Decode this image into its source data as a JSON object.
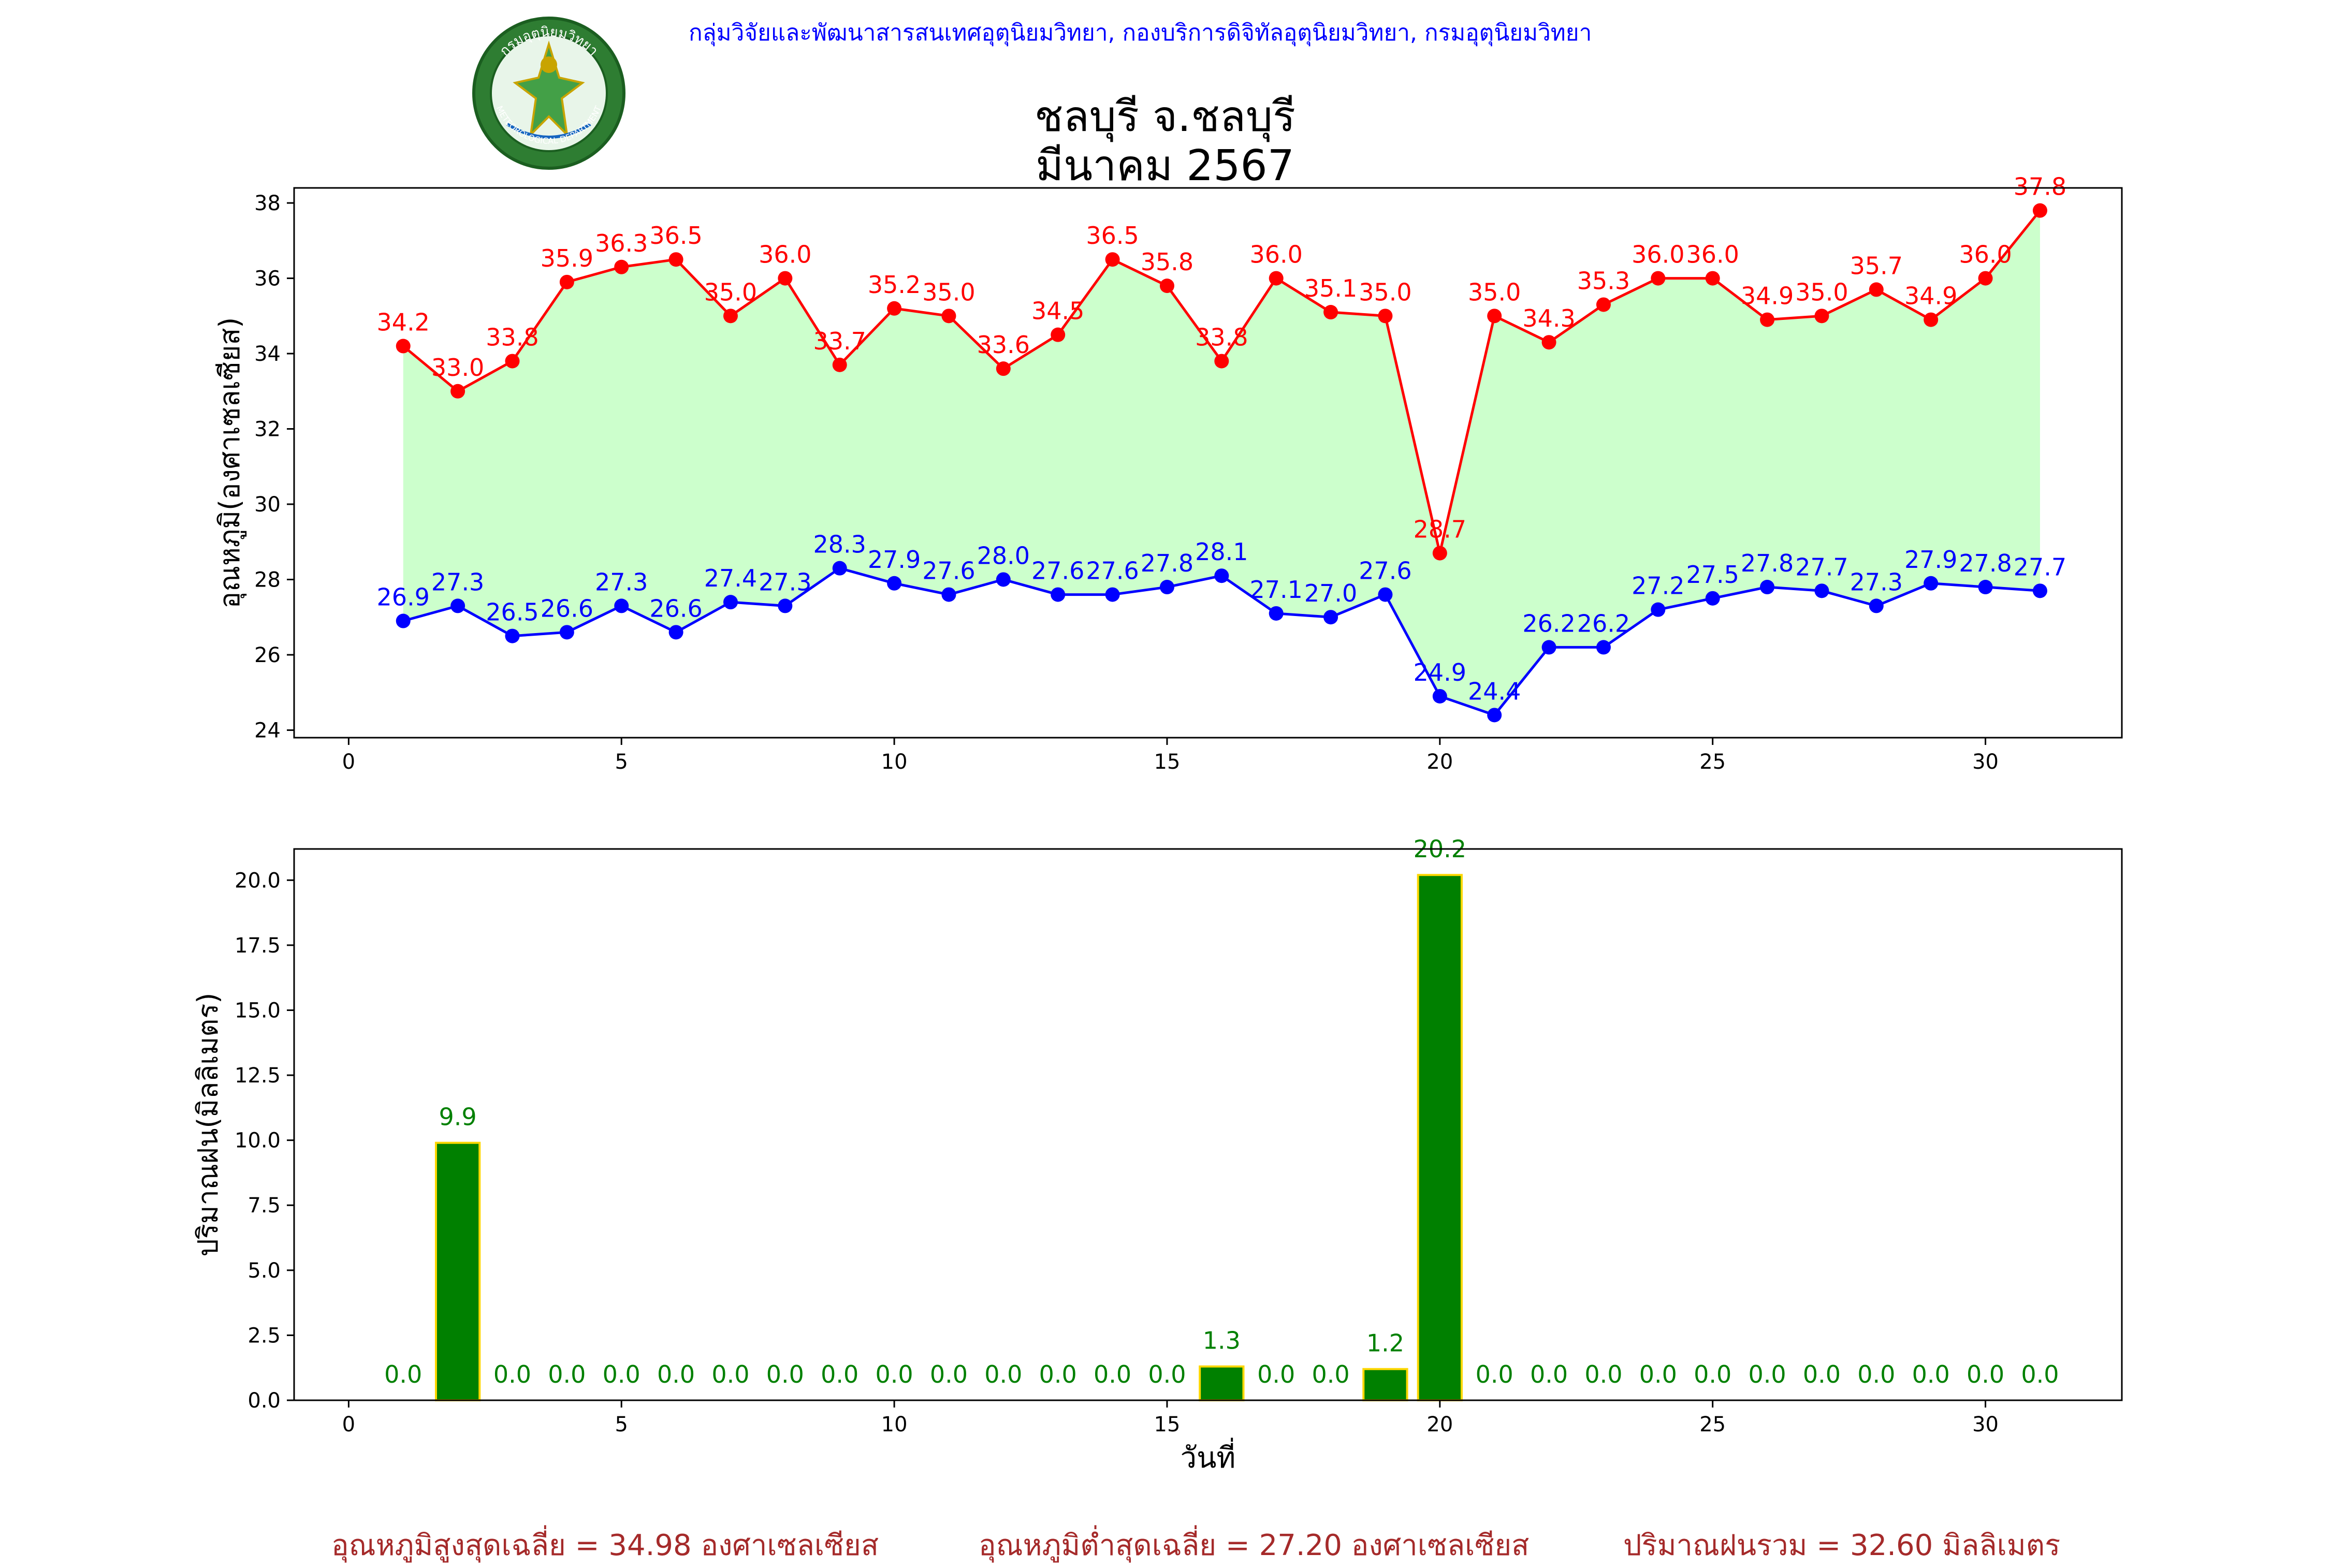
{
  "header": {
    "credit": "กลุ่มวิจัยและพัฒนาสารสนเทศอุตุนิยมวิทยา, กองบริการดิจิทัลอุตุนิยมวิทยา, กรมอุตุนิยมวิทยา",
    "title_line1": "ชลบุรี จ.ชลบุรี",
    "title_line2": "มีนาคม 2567",
    "logo_text_top": "กรมอุตุนิยมวิทยา",
    "logo_text_bottom": "METEOROLOGICAL DEPARTMENT"
  },
  "summary": {
    "max_avg": "อุณหภูมิสูงสุดเฉลี่ย = 34.98 องศาเซลเซียส",
    "min_avg": "อุณหภูมิต่ำสุดเฉลี่ย = 27.20 องศาเซลเซียส",
    "rain_total": "ปริมาณฝนรวม = 32.60 มิลลิเมตร"
  },
  "colors": {
    "max": "#ff0000",
    "min": "#0000ff",
    "fill": "#ccffcc",
    "bar": "#008000",
    "bar_edge": "#ffd700",
    "rain_label": "#008000"
  },
  "chart_data": [
    {
      "type": "line",
      "ylabel": "อุณหภูมิ(องศาเซลเซียส)",
      "xlim": [
        -1,
        32.5
      ],
      "ylim": [
        23.8,
        38.4
      ],
      "xticks": [
        0,
        5,
        10,
        15,
        20,
        25,
        30
      ],
      "yticks": [
        24,
        26,
        28,
        30,
        32,
        34,
        36,
        38
      ],
      "x": [
        1,
        2,
        3,
        4,
        5,
        6,
        7,
        8,
        9,
        10,
        11,
        12,
        13,
        14,
        15,
        16,
        17,
        18,
        19,
        20,
        21,
        22,
        23,
        24,
        25,
        26,
        27,
        28,
        29,
        30,
        31
      ],
      "series": [
        {
          "values": [
            34.2,
            33.0,
            33.8,
            35.9,
            36.3,
            36.5,
            35.0,
            36.0,
            33.7,
            35.2,
            35.0,
            33.6,
            34.5,
            36.5,
            35.8,
            33.8,
            36.0,
            35.1,
            35.0,
            28.7,
            35.0,
            34.3,
            35.3,
            36.0,
            36.0,
            34.9,
            35.0,
            35.7,
            34.9,
            36.0,
            37.8
          ]
        },
        {
          "values": [
            26.9,
            27.3,
            26.5,
            26.6,
            27.3,
            26.6,
            27.4,
            27.3,
            28.3,
            27.9,
            27.6,
            28.0,
            27.6,
            27.6,
            27.8,
            28.1,
            27.1,
            27.0,
            27.6,
            24.9,
            24.4,
            26.2,
            26.2,
            27.2,
            27.5,
            27.8,
            27.7,
            27.3,
            27.9,
            27.8,
            27.7
          ]
        }
      ]
    },
    {
      "type": "bar",
      "xlabel": "วันที่",
      "ylabel": "ปริมาณฝน(มิลลิเมตร)",
      "xlim": [
        -1,
        32.5
      ],
      "ylim": [
        0,
        21.2
      ],
      "xticks": [
        0,
        5,
        10,
        15,
        20,
        25,
        30
      ],
      "yticks": [
        0.0,
        2.5,
        5.0,
        7.5,
        10.0,
        12.5,
        15.0,
        17.5,
        20.0
      ],
      "x": [
        1,
        2,
        3,
        4,
        5,
        6,
        7,
        8,
        9,
        10,
        11,
        12,
        13,
        14,
        15,
        16,
        17,
        18,
        19,
        20,
        21,
        22,
        23,
        24,
        25,
        26,
        27,
        28,
        29,
        30,
        31
      ],
      "values": [
        0.0,
        9.9,
        0.0,
        0.0,
        0.0,
        0.0,
        0.0,
        0.0,
        0.0,
        0.0,
        0.0,
        0.0,
        0.0,
        0.0,
        0.0,
        1.3,
        0.0,
        0.0,
        1.2,
        20.2,
        0.0,
        0.0,
        0.0,
        0.0,
        0.0,
        0.0,
        0.0,
        0.0,
        0.0,
        0.0,
        0.0
      ]
    }
  ]
}
